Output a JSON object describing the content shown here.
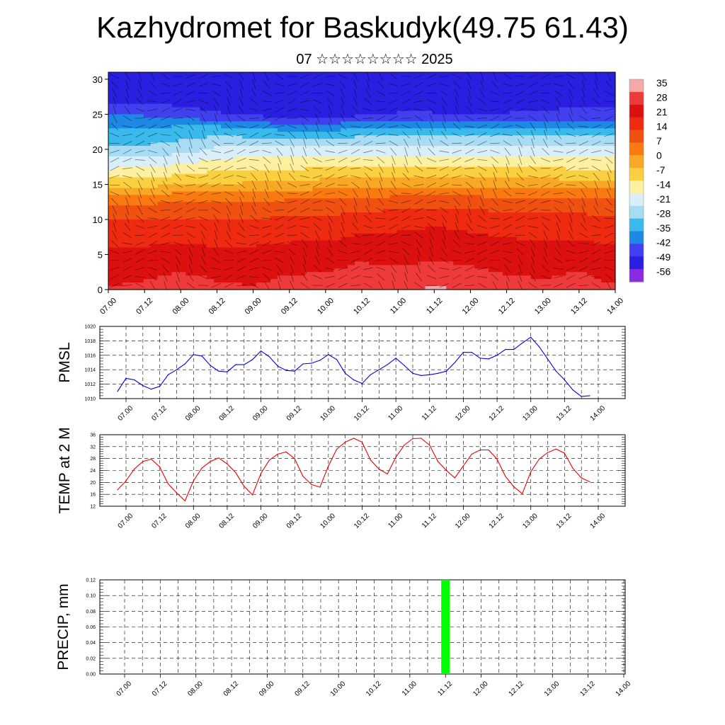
{
  "header": {
    "title": "Kazhydromet for Baskudyk(49.75 61.43)",
    "subtitle": "07 ☆☆☆☆☆☆☆☆ 2025"
  },
  "chart_data": [
    {
      "type": "heatmap",
      "panel": "cross-section",
      "x_tick_labels": [
        "07.00",
        "07.12",
        "08.00",
        "08.12",
        "09.00",
        "09.12",
        "10.00",
        "10.12",
        "11.00",
        "11.12",
        "12.00",
        "12.12",
        "13.00",
        "13.12",
        "14.00"
      ],
      "y_ticks": [
        0,
        5,
        10,
        15,
        20,
        25,
        30
      ],
      "ylim": [
        0,
        31
      ],
      "colorbar": {
        "labels": [
          "35",
          "28",
          "21",
          "14",
          "7",
          "0",
          "-7",
          "-14",
          "-21",
          "-28",
          "-35",
          "-42",
          "-49",
          "-56"
        ],
        "colors": [
          "#f4a8a8",
          "#ee3a3a",
          "#dd1010",
          "#ee2a10",
          "#f05010",
          "#f87a10",
          "#f9a825",
          "#fbd040",
          "#fdf0a0",
          "#d8eef8",
          "#a8dcf4",
          "#39b9ec",
          "#1e88e5",
          "#4040ee",
          "#2a1ee0",
          "#8a2be2"
        ]
      },
      "field_rows_temperature_by_level": [
        {
          "y": 0,
          "values": [
            26,
            27,
            29,
            27,
            26,
            28,
            29,
            31,
            30,
            33,
            31,
            28,
            27,
            29,
            26
          ]
        },
        {
          "y": 5,
          "values": [
            21,
            21,
            22,
            21,
            21,
            22,
            22,
            24,
            23,
            24,
            23,
            22,
            22,
            22,
            21
          ]
        },
        {
          "y": 10,
          "values": [
            13,
            13,
            13,
            13,
            13,
            14,
            14,
            16,
            17,
            18,
            17,
            16,
            15,
            15,
            14
          ]
        },
        {
          "y": 13,
          "values": [
            4,
            4,
            5,
            5,
            5,
            6,
            6,
            7,
            8,
            8,
            8,
            7,
            7,
            7,
            6
          ]
        },
        {
          "y": 15,
          "values": [
            -8,
            -8,
            -7,
            -6,
            -5,
            -4,
            -3,
            -2,
            -2,
            -2,
            -2,
            -3,
            -3,
            -3,
            -3
          ]
        },
        {
          "y": 17,
          "values": [
            -18,
            -17,
            -15,
            -13,
            -12,
            -12,
            -11,
            -11,
            -11,
            -11,
            -11,
            -11,
            -11,
            -12,
            -12
          ]
        },
        {
          "y": 20,
          "values": [
            -30,
            -30,
            -28,
            -24,
            -23,
            -22,
            -22,
            -22,
            -22,
            -22,
            -22,
            -22,
            -22,
            -22,
            -22
          ]
        },
        {
          "y": 23,
          "values": [
            -38,
            -38,
            -36,
            -36,
            -38,
            -40,
            -40,
            -38,
            -37,
            -37,
            -37,
            -38,
            -38,
            -38,
            -38
          ]
        },
        {
          "y": 25,
          "values": [
            -45,
            -45,
            -48,
            -50,
            -52,
            -53,
            -53,
            -52,
            -50,
            -50,
            -50,
            -50,
            -50,
            -48,
            -48
          ]
        },
        {
          "y": 28,
          "values": [
            -55,
            -55,
            -55,
            -55,
            -56,
            -56,
            -56,
            -56,
            -55,
            -56,
            -56,
            -56,
            -55,
            -55,
            -55
          ]
        },
        {
          "y": 31,
          "values": [
            -52,
            -52,
            -52,
            -53,
            -53,
            -53,
            -53,
            -53,
            -53,
            -53,
            -53,
            -53,
            -53,
            -53,
            -52
          ]
        }
      ]
    },
    {
      "type": "line",
      "ylabel": "PMSL",
      "ylim": [
        1010,
        1020
      ],
      "y_tick_labels": [
        "1010",
        "1012",
        "1014",
        "1016",
        "1018",
        "1020"
      ],
      "x_tick_labels": [
        "07.00",
        "07.12",
        "08.00",
        "08.12",
        "09.00",
        "09.12",
        "10.00",
        "10.12",
        "11.00",
        "11.12",
        "12.00",
        "12.12",
        "13.00",
        "13.12",
        "14.00"
      ],
      "x_step_hours": 3,
      "color": "#0000ee",
      "values": [
        1011.0,
        1012.8,
        1012.6,
        1011.8,
        1011.3,
        1011.7,
        1013.3,
        1014.0,
        1014.8,
        1016.1,
        1015.9,
        1014.6,
        1013.8,
        1013.7,
        1014.7,
        1014.7,
        1015.4,
        1016.6,
        1015.8,
        1014.5,
        1013.9,
        1013.8,
        1014.8,
        1014.9,
        1015.3,
        1016.1,
        1015.4,
        1013.5,
        1012.6,
        1012.1,
        1013.3,
        1014.0,
        1014.7,
        1015.6,
        1014.6,
        1013.5,
        1013.2,
        1013.3,
        1013.5,
        1013.8,
        1015.0,
        1016.4,
        1016.4,
        1015.6,
        1015.5,
        1016.0,
        1016.8,
        1016.8,
        1017.7,
        1018.5,
        1017.2,
        1015.5,
        1013.8,
        1012.6,
        1011.2,
        1010.3,
        1010.4
      ]
    },
    {
      "type": "line",
      "ylabel": "TEMP at 2 M",
      "ylim": [
        12,
        36
      ],
      "y_tick_labels": [
        "12",
        "16",
        "20",
        "24",
        "28",
        "32",
        "36"
      ],
      "x_tick_labels": [
        "07.00",
        "07.12",
        "08.00",
        "08.12",
        "09.00",
        "09.12",
        "10.00",
        "10.12",
        "11.00",
        "11.12",
        "12.00",
        "12.12",
        "13.00",
        "13.12",
        "14.00"
      ],
      "x_step_hours": 3,
      "color": "#ee0000",
      "values": [
        17.5,
        20.5,
        24.5,
        27.0,
        27.8,
        25.2,
        19.5,
        16.5,
        13.8,
        20.5,
        24.8,
        27.0,
        28.2,
        26.2,
        23.3,
        18.7,
        15.8,
        23.0,
        27.5,
        29.5,
        30.2,
        28.0,
        22.0,
        19.3,
        18.4,
        25.5,
        31.2,
        33.5,
        34.8,
        33.5,
        27.5,
        24.5,
        22.8,
        28.5,
        32.5,
        34.7,
        34.8,
        32.5,
        27.0,
        24.0,
        21.5,
        25.5,
        29.5,
        30.9,
        30.9,
        27.8,
        22.0,
        18.5,
        16.2,
        23.5,
        27.8,
        30.0,
        31.2,
        29.8,
        24.7,
        21.5,
        20.2
      ]
    },
    {
      "type": "bar",
      "ylabel": "PRECIP, mm",
      "ylim": [
        0,
        0.12
      ],
      "y_tick_labels": [
        "0.00",
        "0.02",
        "0.04",
        "0.06",
        "0.08",
        "0.10",
        "0.12"
      ],
      "x_tick_labels": [
        "07.00",
        "07.12",
        "08.00",
        "08.12",
        "09.00",
        "09.12",
        "10.00",
        "10.12",
        "11.00",
        "11.12",
        "12.00",
        "12.12",
        "13.00",
        "13.12",
        "14.00"
      ],
      "color": "#00ff00",
      "bars": [
        {
          "x_label": "11.12",
          "value": 0.12
        }
      ]
    }
  ]
}
